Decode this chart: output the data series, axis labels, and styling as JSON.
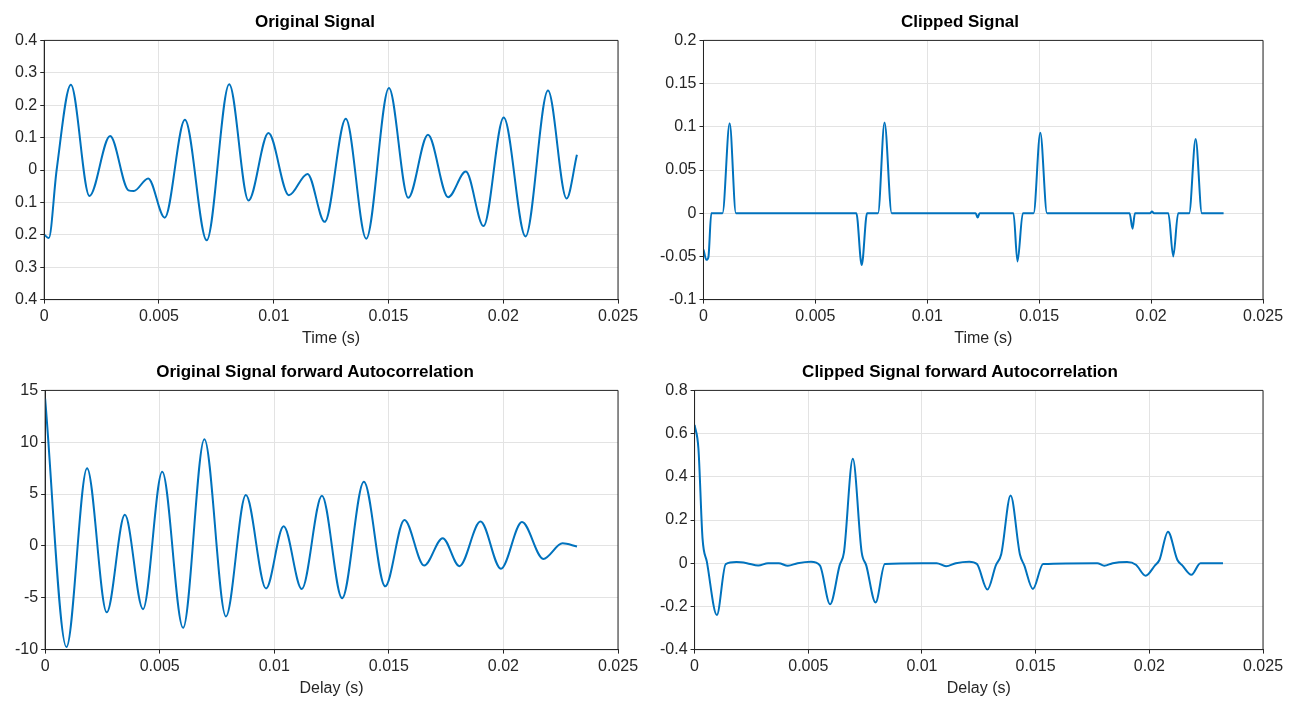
{
  "chart_data": [
    {
      "type": "line",
      "title": "Original Signal",
      "xlabel": "Time (s)",
      "xlim": [
        0,
        0.025
      ],
      "xticks": [
        0,
        0.005,
        0.01,
        0.015,
        0.02,
        0.025
      ],
      "ylim": [
        -0.4,
        0.4
      ],
      "yticks": [
        {
          "value": -0.4,
          "label": "0.4"
        },
        {
          "value": -0.3,
          "label": "0.3"
        },
        {
          "value": -0.2,
          "label": "0.2"
        },
        {
          "value": -0.1,
          "label": "0.1"
        },
        0,
        0.1,
        0.2,
        0.3,
        0.4
      ],
      "grid": true,
      "marker": "none",
      "line_style": "solid",
      "series": [
        {
          "color": "#0072bd",
          "x": [
            0,
            0.0002,
            0.00054,
            0.00116,
            0.00197,
            0.00287,
            0.00367,
            0.0039,
            0.00453,
            0.00525,
            0.00613,
            0.00708,
            0.00806,
            0.0089,
            0.00977,
            0.01066,
            0.01147,
            0.01222,
            0.01314,
            0.01403,
            0.01502,
            0.01586,
            0.01672,
            0.0176,
            0.01837,
            0.01914,
            0.02002,
            0.02097,
            0.02195,
            0.02276,
            0.02321
          ],
          "values": [
            -0.2,
            -0.21,
            0,
            0.263,
            -0.08,
            0.105,
            -0.063,
            -0.065,
            -0.026,
            -0.147,
            0.155,
            -0.217,
            0.265,
            -0.094,
            0.114,
            -0.078,
            -0.012,
            -0.16,
            0.158,
            -0.212,
            0.253,
            -0.086,
            0.109,
            -0.084,
            -0.005,
            -0.173,
            0.162,
            -0.205,
            0.245,
            -0.088,
            0.047
          ]
        }
      ]
    },
    {
      "type": "line",
      "title": "Clipped Signal",
      "xlabel": "Time (s)",
      "xlim": [
        0,
        0.025
      ],
      "xticks": [
        0,
        0.005,
        0.01,
        0.015,
        0.02,
        0.025
      ],
      "ylim": [
        -0.1,
        0.2
      ],
      "yticks": [
        -0.1,
        -0.05,
        0,
        0.05,
        0.1,
        0.15,
        0.2
      ],
      "grid": true,
      "marker": "none",
      "line_style": "solid",
      "series": [
        {
          "color": "#0072bd",
          "x": [
            0,
            0.00013,
            0.00022,
            0.00035,
            0.00085,
            0.00117,
            0.00145,
            0.00683,
            0.00707,
            0.00731,
            0.0078,
            0.00809,
            0.00841,
            0.01216,
            0.01225,
            0.01234,
            0.01385,
            0.01403,
            0.01427,
            0.01475,
            0.01505,
            0.01535,
            0.01904,
            0.01917,
            0.01928,
            0.01995,
            0.02004,
            0.02013,
            0.02077,
            0.02099,
            0.02121,
            0.0217,
            0.02199,
            0.02227,
            0.02324
          ],
          "values": [
            -0.042,
            -0.054,
            -0.051,
            0,
            0,
            0.104,
            0,
            0,
            -0.06,
            0,
            0,
            0.105,
            0,
            0,
            -0.005,
            0,
            0,
            -0.056,
            0,
            0,
            0.093,
            0,
            0,
            -0.018,
            0,
            0,
            0.002,
            0,
            0,
            -0.05,
            0,
            0,
            0.086,
            0,
            0
          ]
        }
      ]
    },
    {
      "type": "line",
      "title": "Original Signal forward Autocorrelation",
      "xlabel": "Delay (s)",
      "xlim": [
        0,
        0.025
      ],
      "xticks": [
        0,
        0.005,
        0.01,
        0.015,
        0.02,
        0.025
      ],
      "ylim": [
        -10,
        15
      ],
      "yticks": [
        -10,
        -5,
        0,
        5,
        10,
        15
      ],
      "grid": true,
      "marker": "none",
      "line_style": "solid",
      "series": [
        {
          "color": "#0072bd",
          "x": [
            0,
            0.00093,
            0.00183,
            0.00269,
            0.00348,
            0.00427,
            0.00511,
            0.00602,
            0.00695,
            0.00789,
            0.00876,
            0.00964,
            0.01041,
            0.0112,
            0.01208,
            0.01296,
            0.01391,
            0.01484,
            0.01568,
            0.01654,
            0.01735,
            0.01808,
            0.019,
            0.01989,
            0.02081,
            0.02174,
            0.02258,
            0.02321
          ],
          "values": [
            14.2,
            -9.75,
            7.5,
            -6.4,
            3,
            -6.1,
            7.15,
            -7.9,
            10.3,
            -6.8,
            4.9,
            -4.1,
            1.9,
            -4.15,
            4.85,
            -5.05,
            6.2,
            -3.9,
            2.5,
            -1.9,
            0.75,
            -1.95,
            2.35,
            -2.2,
            2.3,
            -1.25,
            0.25,
            -0.05
          ]
        }
      ]
    },
    {
      "type": "line",
      "title": "Clipped Signal forward Autocorrelation",
      "xlabel": "Delay (s)",
      "xlim": [
        0,
        0.025
      ],
      "xticks": [
        0,
        0.005,
        0.01,
        0.015,
        0.02,
        0.025
      ],
      "ylim": [
        -0.4,
        0.8
      ],
      "yticks": [
        -0.4,
        -0.2,
        0,
        0.2,
        0.4,
        0.6,
        0.8
      ],
      "grid": true,
      "marker": "none",
      "line_style": "solid",
      "series": [
        {
          "color": "#0072bd",
          "x": [
            0,
            0.00017,
            0.00035,
            0.00054,
            0.00098,
            0.00137,
            0.00184,
            0.0023,
            0.0028,
            0.00323,
            0.0037,
            0.0041,
            0.00453,
            0.00512,
            0.00551,
            0.00596,
            0.00638,
            0.00657,
            0.00696,
            0.00735,
            0.00755,
            0.00796,
            0.00837,
            0.01,
            0.01065,
            0.01106,
            0.01149,
            0.01208,
            0.01242,
            0.01288,
            0.01325,
            0.01349,
            0.0139,
            0.01431,
            0.0145,
            0.01488,
            0.01533,
            0.01771,
            0.01802,
            0.01839,
            0.01902,
            0.01941,
            0.01984,
            0.02025,
            0.02045,
            0.02082,
            0.02123,
            0.02145,
            0.02185,
            0.02225,
            0.02324
          ],
          "values": [
            0.64,
            0.53,
            0.115,
            0.007,
            -0.24,
            -0.004,
            0.005,
            0,
            -0.011,
            0,
            0,
            -0.012,
            0,
            0.007,
            -0.01,
            -0.19,
            -0.01,
            0.05,
            0.483,
            0.05,
            -0.01,
            -0.182,
            -0.004,
            0,
            0,
            -0.014,
            0,
            0.007,
            -0.004,
            -0.122,
            -0.01,
            0.043,
            0.313,
            0.04,
            -0.01,
            -0.119,
            -0.004,
            0,
            -0.012,
            0,
            0.005,
            -0.007,
            -0.058,
            -0.01,
            0.016,
            0.146,
            0.016,
            -0.01,
            -0.054,
            0,
            0
          ]
        }
      ]
    }
  ]
}
